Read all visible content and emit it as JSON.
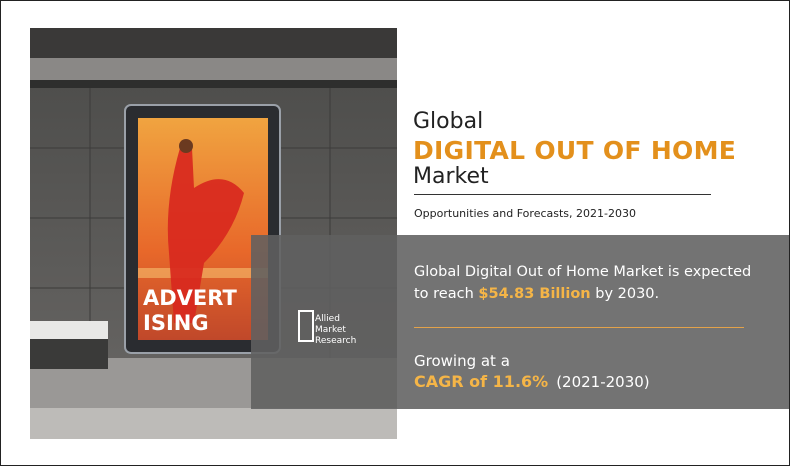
{
  "image": {
    "billboard_text": [
      "ADVERT",
      "ISING"
    ],
    "logo": [
      "Allied",
      "Market",
      "Research"
    ]
  },
  "header": {
    "title_prefix": "Global",
    "title_main": "DIGITAL OUT OF HOME",
    "title_suffix": "Market",
    "subtitle": "Opportunities and Forecasts, 2021-2030"
  },
  "highlights": {
    "statement": {
      "before": "Global Digital Out of Home Market is expected to reach",
      "value": "$54.83 Billion",
      "after": "by 2030."
    },
    "growth": {
      "intro": "Growing at a",
      "cagr": "CAGR of 11.6%",
      "period": "(2021-2030)"
    }
  }
}
